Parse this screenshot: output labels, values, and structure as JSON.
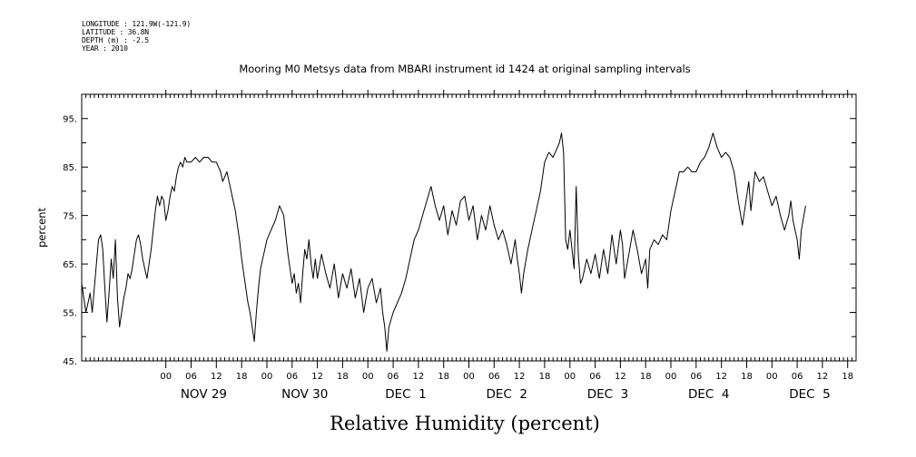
{
  "header": {
    "lines": [
      "LONGITUDE : 121.9W(-121.9)",
      "LATITUDE : 36.8N",
      "DEPTH (m) : -2.5",
      "YEAR : 2010"
    ]
  },
  "chart_data": {
    "type": "line",
    "title": "Mooring M0 Metsys data from MBARI instrument id 1424 at original sampling intervals",
    "xlabel": "Relative Humidity (percent)",
    "ylabel": "percent",
    "ylim": [
      45,
      100
    ],
    "xlim_hours": [
      -20,
      164
    ],
    "y_ticks": [
      "45.",
      "55.",
      "65.",
      "75.",
      "85.",
      "95."
    ],
    "hour_tick_labels": [
      "00",
      "06",
      "12",
      "18",
      "00",
      "06",
      "12",
      "18",
      "00",
      "06",
      "12",
      "18",
      "00",
      "06",
      "12",
      "18",
      "00",
      "06",
      "12",
      "18",
      "00",
      "06",
      "12",
      "18",
      "00",
      "06",
      "12",
      "18"
    ],
    "date_labels": [
      "NOV 29",
      "NOV 30",
      "DEC  1",
      "DEC  2",
      "DEC  3",
      "DEC  4",
      "DEC  5"
    ],
    "grid": false,
    "series": [
      {
        "values": [
          [
            -20,
            61
          ],
          [
            -19.5,
            58
          ],
          [
            -19,
            55
          ],
          [
            -18.5,
            57
          ],
          [
            -18,
            59
          ],
          [
            -17.5,
            55
          ],
          [
            -17,
            60
          ],
          [
            -16.5,
            65
          ],
          [
            -16,
            70
          ],
          [
            -15.5,
            71
          ],
          [
            -15,
            68
          ],
          [
            -14.5,
            60
          ],
          [
            -14,
            53
          ],
          [
            -13.5,
            59
          ],
          [
            -13,
            66
          ],
          [
            -12.5,
            62
          ],
          [
            -12,
            70
          ],
          [
            -11.5,
            58
          ],
          [
            -11,
            52
          ],
          [
            -10.5,
            55
          ],
          [
            -10,
            58
          ],
          [
            -9.5,
            60
          ],
          [
            -9,
            63
          ],
          [
            -8.5,
            62
          ],
          [
            -8,
            64
          ],
          [
            -7.5,
            67
          ],
          [
            -7,
            70
          ],
          [
            -6.5,
            71
          ],
          [
            -6,
            69
          ],
          [
            -5.5,
            66
          ],
          [
            -5,
            64
          ],
          [
            -4.5,
            62
          ],
          [
            -4,
            65
          ],
          [
            -3.5,
            68
          ],
          [
            -3,
            72
          ],
          [
            -2.5,
            76
          ],
          [
            -2,
            79
          ],
          [
            -1.5,
            77
          ],
          [
            -1,
            79
          ],
          [
            -0.5,
            78
          ],
          [
            0,
            74
          ],
          [
            0.5,
            76
          ],
          [
            1,
            79
          ],
          [
            1.5,
            81
          ],
          [
            2,
            80
          ],
          [
            2.5,
            83
          ],
          [
            3,
            85
          ],
          [
            3.5,
            86
          ],
          [
            4,
            85
          ],
          [
            4.5,
            87
          ],
          [
            5,
            86
          ],
          [
            6,
            86
          ],
          [
            7,
            87
          ],
          [
            8,
            86
          ],
          [
            9,
            87
          ],
          [
            10,
            87
          ],
          [
            11,
            86
          ],
          [
            12,
            86
          ],
          [
            13,
            84
          ],
          [
            13.5,
            82
          ],
          [
            14,
            83
          ],
          [
            14.5,
            84
          ],
          [
            15,
            82
          ],
          [
            15.5,
            80
          ],
          [
            16,
            78
          ],
          [
            16.5,
            76
          ],
          [
            17,
            73
          ],
          [
            17.5,
            70
          ],
          [
            18,
            66
          ],
          [
            18.5,
            63
          ],
          [
            19,
            60
          ],
          [
            19.5,
            57
          ],
          [
            20,
            55
          ],
          [
            20.5,
            52
          ],
          [
            21,
            49
          ],
          [
            21.5,
            55
          ],
          [
            22,
            60
          ],
          [
            22.5,
            64
          ],
          [
            23,
            66
          ],
          [
            23.5,
            68
          ],
          [
            24,
            70
          ],
          [
            25,
            72
          ],
          [
            26,
            74
          ],
          [
            27,
            77
          ],
          [
            28,
            75
          ],
          [
            28.5,
            71
          ],
          [
            29,
            67
          ],
          [
            29.5,
            64
          ],
          [
            30,
            61
          ],
          [
            30.5,
            63
          ],
          [
            31,
            59
          ],
          [
            31.5,
            61
          ],
          [
            32,
            57
          ],
          [
            32.5,
            63
          ],
          [
            33,
            68
          ],
          [
            33.5,
            66
          ],
          [
            34,
            70
          ],
          [
            34.5,
            65
          ],
          [
            35,
            62
          ],
          [
            35.5,
            66
          ],
          [
            36,
            62
          ],
          [
            37,
            67
          ],
          [
            38,
            63
          ],
          [
            39,
            60
          ],
          [
            40,
            65
          ],
          [
            41,
            58
          ],
          [
            42,
            63
          ],
          [
            43,
            60
          ],
          [
            44,
            64
          ],
          [
            45,
            58
          ],
          [
            46,
            62
          ],
          [
            47,
            55
          ],
          [
            48,
            60
          ],
          [
            49,
            62
          ],
          [
            50,
            57
          ],
          [
            51,
            60
          ],
          [
            51.5,
            55
          ],
          [
            52,
            52
          ],
          [
            52.5,
            47
          ],
          [
            53,
            52
          ],
          [
            54,
            55
          ],
          [
            55,
            57
          ],
          [
            56,
            59
          ],
          [
            57,
            62
          ],
          [
            58,
            66
          ],
          [
            59,
            70
          ],
          [
            60,
            72
          ],
          [
            61,
            75
          ],
          [
            62,
            78
          ],
          [
            63,
            81
          ],
          [
            64,
            77
          ],
          [
            65,
            74
          ],
          [
            66,
            77
          ],
          [
            67,
            71
          ],
          [
            68,
            76
          ],
          [
            69,
            73
          ],
          [
            70,
            78
          ],
          [
            71,
            79
          ],
          [
            72,
            74
          ],
          [
            73,
            77
          ],
          [
            74,
            70
          ],
          [
            75,
            75
          ],
          [
            76,
            72
          ],
          [
            77,
            77
          ],
          [
            78,
            73
          ],
          [
            79,
            70
          ],
          [
            80,
            72
          ],
          [
            81,
            69
          ],
          [
            82,
            65
          ],
          [
            83,
            70
          ],
          [
            83.5,
            66
          ],
          [
            84,
            63
          ],
          [
            84.5,
            59
          ],
          [
            85,
            63
          ],
          [
            86,
            68
          ],
          [
            87,
            72
          ],
          [
            88,
            76
          ],
          [
            89,
            80
          ],
          [
            90,
            86
          ],
          [
            91,
            88
          ],
          [
            92,
            87
          ],
          [
            93,
            89
          ],
          [
            93.5,
            90
          ],
          [
            94,
            92
          ],
          [
            94.5,
            88
          ],
          [
            95,
            70
          ],
          [
            95.5,
            68
          ],
          [
            96,
            72
          ],
          [
            97,
            64
          ],
          [
            97.5,
            81
          ],
          [
            98,
            67
          ],
          [
            98.5,
            61
          ],
          [
            99,
            62
          ],
          [
            100,
            66
          ],
          [
            101,
            63
          ],
          [
            102,
            67
          ],
          [
            103,
            62
          ],
          [
            104,
            68
          ],
          [
            105,
            63
          ],
          [
            106,
            71
          ],
          [
            107,
            65
          ],
          [
            108,
            72
          ],
          [
            108.5,
            69
          ],
          [
            109,
            62
          ],
          [
            110,
            67
          ],
          [
            111,
            72
          ],
          [
            112,
            68
          ],
          [
            113,
            63
          ],
          [
            114,
            66
          ],
          [
            114.5,
            60
          ],
          [
            115,
            68
          ],
          [
            116,
            70
          ],
          [
            117,
            69
          ],
          [
            118,
            71
          ],
          [
            119,
            70
          ],
          [
            120,
            76
          ],
          [
            121,
            80
          ],
          [
            122,
            84
          ],
          [
            123,
            84
          ],
          [
            124,
            85
          ],
          [
            125,
            84
          ],
          [
            126,
            84
          ],
          [
            127,
            86
          ],
          [
            128,
            87
          ],
          [
            129,
            89
          ],
          [
            130,
            92
          ],
          [
            131,
            89
          ],
          [
            132,
            87
          ],
          [
            133,
            88
          ],
          [
            134,
            87
          ],
          [
            135,
            84
          ],
          [
            136,
            78
          ],
          [
            137,
            73
          ],
          [
            138,
            79
          ],
          [
            138.5,
            82
          ],
          [
            139,
            76
          ],
          [
            140,
            84
          ],
          [
            141,
            82
          ],
          [
            142,
            83
          ],
          [
            143,
            80
          ],
          [
            144,
            77
          ],
          [
            145,
            79
          ],
          [
            146,
            75
          ],
          [
            147,
            72
          ],
          [
            148,
            75
          ],
          [
            148.5,
            78
          ],
          [
            149,
            74
          ],
          [
            150,
            70
          ],
          [
            150.5,
            66
          ],
          [
            151,
            72
          ],
          [
            152,
            77
          ]
        ]
      }
    ]
  }
}
